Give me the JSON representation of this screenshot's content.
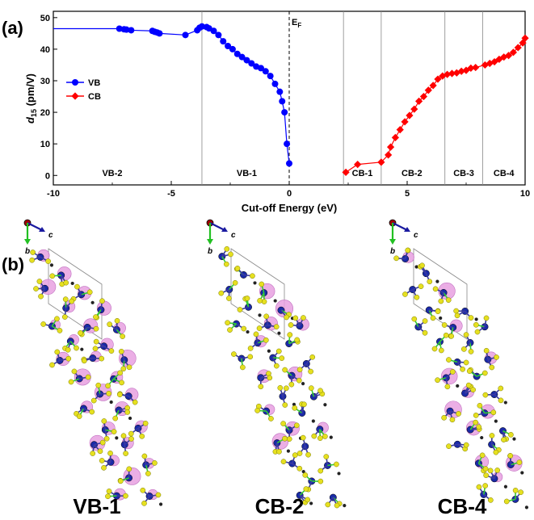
{
  "panel_a_label": "(a)",
  "panel_b_label": "(b)",
  "chart_data": {
    "type": "line",
    "xlabel": "Cut-off Energy (eV)",
    "ylabel_main": "d",
    "ylabel_sub": "15",
    "ylabel_unit": " (pm/V)",
    "xlim": [
      -10,
      10
    ],
    "ylim": [
      -3,
      52
    ],
    "xticks": [
      -10,
      -5,
      0,
      5,
      10
    ],
    "yticks": [
      0,
      10,
      20,
      30,
      40,
      50
    ],
    "fermi_label": "E",
    "fermi_sub": "F",
    "fermi_x": 0,
    "dividers": [
      -3.7,
      2.3,
      3.9,
      6.6,
      8.2
    ],
    "regions": [
      {
        "label": "VB-2",
        "x": -7.5
      },
      {
        "label": "VB-1",
        "x": -1.8
      },
      {
        "label": "CB-1",
        "x": 3.1
      },
      {
        "label": "CB-2",
        "x": 5.2
      },
      {
        "label": "CB-3",
        "x": 7.4
      },
      {
        "label": "CB-4",
        "x": 9.1
      }
    ],
    "series": [
      {
        "name": "VB",
        "color": "#0000ff",
        "marker": "circle",
        "x": [
          -10,
          -7.2,
          -7.0,
          -6.9,
          -6.7,
          -5.8,
          -5.7,
          -5.6,
          -5.5,
          -4.4,
          -3.9,
          -3.8,
          -3.7,
          -3.5,
          -3.4,
          -3.2,
          -3.0,
          -2.8,
          -2.6,
          -2.4,
          -2.2,
          -2.0,
          -1.8,
          -1.6,
          -1.4,
          -1.2,
          -1.0,
          -0.8,
          -0.6,
          -0.4,
          -0.3,
          -0.2,
          -0.1,
          0.0
        ],
        "values": [
          46.5,
          46.5,
          46.3,
          46.2,
          46.0,
          45.8,
          45.5,
          45.3,
          45.0,
          44.5,
          46.0,
          46.8,
          47.2,
          47.0,
          46.6,
          45.8,
          44.5,
          42.5,
          41.0,
          40.0,
          38.5,
          37.5,
          36.5,
          35.5,
          34.5,
          34.0,
          33.0,
          31.5,
          29.0,
          26.5,
          23.5,
          20.0,
          10.0,
          3.8
        ]
      },
      {
        "name": "CB",
        "color": "#ff0000",
        "marker": "diamond",
        "x": [
          2.4,
          2.9,
          3.9,
          4.2,
          4.3,
          4.5,
          4.7,
          4.9,
          5.1,
          5.3,
          5.5,
          5.7,
          5.9,
          6.1,
          6.3,
          6.5,
          6.7,
          6.9,
          7.1,
          7.3,
          7.5,
          7.7,
          7.9,
          8.3,
          8.5,
          8.7,
          8.9,
          9.1,
          9.3,
          9.5,
          9.7,
          9.9,
          10.0
        ],
        "values": [
          1.0,
          3.5,
          4.2,
          6.5,
          9.0,
          12.0,
          14.5,
          17.0,
          19.0,
          21.0,
          23.5,
          25.0,
          27.0,
          28.5,
          30.5,
          31.5,
          32.0,
          32.3,
          32.5,
          33.0,
          33.3,
          34.0,
          34.2,
          35.0,
          35.5,
          36.0,
          36.8,
          37.5,
          38.0,
          39.0,
          40.5,
          42.0,
          43.5
        ]
      }
    ],
    "legend": {
      "position": "left",
      "entries": [
        "VB",
        "CB"
      ]
    }
  },
  "structures": [
    {
      "caption": "VB-1",
      "axis_c": "c",
      "axis_b": "b",
      "density": "high"
    },
    {
      "caption": "CB-2",
      "axis_c": "c",
      "axis_b": "b",
      "density": "medium"
    },
    {
      "caption": "CB-4",
      "axis_c": "c",
      "axis_b": "b",
      "density": "low"
    }
  ]
}
